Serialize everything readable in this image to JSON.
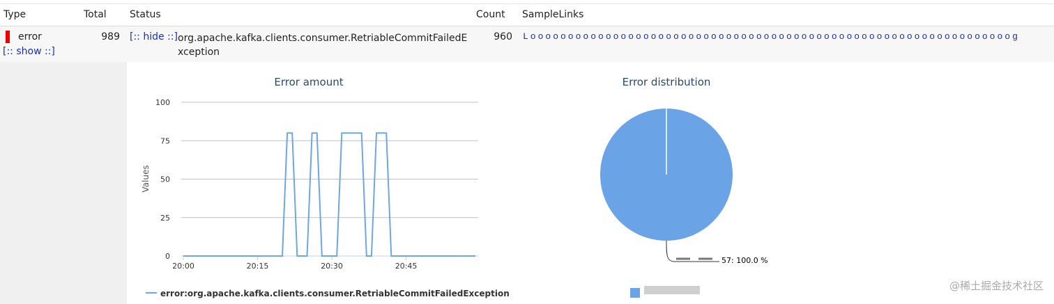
{
  "table": {
    "headers": [
      "Type",
      "Total",
      "Status",
      "Count",
      "SampleLinks"
    ],
    "rows": [
      {
        "type": "error",
        "total": 989,
        "hide_toggle": "[:: hide ::]",
        "show_toggle": "[:: show ::]",
        "status": "org.apache.kafka.clients.consumer.RetriableCommitFailedException",
        "count": 960,
        "sample_link": "Loooooooooooooooooooooooooooooooooooooooooooooooooooooooooooooooog"
      }
    ]
  },
  "chart_data": [
    {
      "type": "line",
      "title": "Error amount",
      "y_label": "Values",
      "x": [
        "20:00",
        "20:01",
        "20:02",
        "20:03",
        "20:04",
        "20:05",
        "20:06",
        "20:07",
        "20:08",
        "20:09",
        "20:10",
        "20:11",
        "20:12",
        "20:13",
        "20:14",
        "20:15",
        "20:16",
        "20:17",
        "20:18",
        "20:19",
        "20:20",
        "20:21",
        "20:22",
        "20:23",
        "20:24",
        "20:25",
        "20:26",
        "20:27",
        "20:28",
        "20:29",
        "20:30",
        "20:31",
        "20:32",
        "20:33",
        "20:34",
        "20:35",
        "20:36",
        "20:37",
        "20:38",
        "20:39",
        "20:40",
        "20:41",
        "20:42",
        "20:43",
        "20:44",
        "20:45",
        "20:46",
        "20:47",
        "20:48",
        "20:49",
        "20:50",
        "20:51",
        "20:52",
        "20:53",
        "20:54",
        "20:55",
        "20:56",
        "20:57",
        "20:58",
        "20:59"
      ],
      "series": [
        {
          "name": "error:org.apache.kafka.clients.consumer.RetriableCommitFailedException",
          "color": "#6ea6e2",
          "values": [
            0,
            0,
            0,
            0,
            0,
            0,
            0,
            0,
            0,
            0,
            0,
            0,
            0,
            0,
            0,
            0,
            0,
            0,
            0,
            0,
            0,
            80,
            80,
            0,
            0,
            0,
            80,
            80,
            0,
            0,
            0,
            0,
            80,
            80,
            80,
            80,
            80,
            0,
            0,
            80,
            80,
            80,
            0,
            0,
            0,
            0,
            0,
            0,
            0,
            0,
            0,
            0,
            0,
            0,
            0,
            0,
            0,
            0,
            0,
            0
          ]
        }
      ],
      "xlim": [
        "20:00",
        "20:59"
      ],
      "xticks": [
        "20:00",
        "20:15",
        "20:30",
        "20:45"
      ],
      "ylim": [
        0,
        100
      ],
      "yticks": [
        0,
        25,
        50,
        75,
        100
      ],
      "grid": true
    },
    {
      "type": "pie",
      "title": "Error distribution",
      "values": [
        100
      ],
      "value_labels": [
        "57: 100.0 %"
      ],
      "colors": [
        "#6aa3e6"
      ]
    }
  ],
  "watermark": "@稀土掘金技术社区"
}
